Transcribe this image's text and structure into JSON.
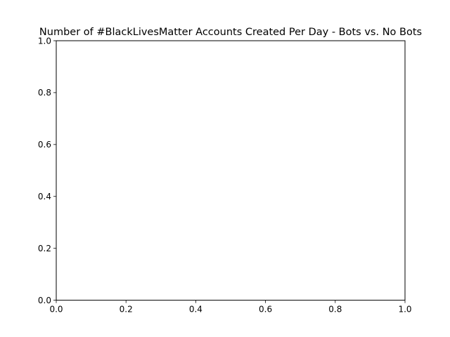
{
  "chart_data": {
    "type": "line",
    "title": "Number of #BlackLivesMatter Accounts Created Per Day - Bots vs. No Bots",
    "xlabel": "",
    "ylabel": "",
    "xlim": [
      0.0,
      1.0
    ],
    "ylim": [
      0.0,
      1.0
    ],
    "x_ticks": [
      "0.0",
      "0.2",
      "0.4",
      "0.6",
      "0.8",
      "1.0"
    ],
    "y_ticks": [
      "0.0",
      "0.2",
      "0.4",
      "0.6",
      "0.8",
      "1.0"
    ],
    "series": [],
    "grid": false,
    "legend": "none"
  }
}
